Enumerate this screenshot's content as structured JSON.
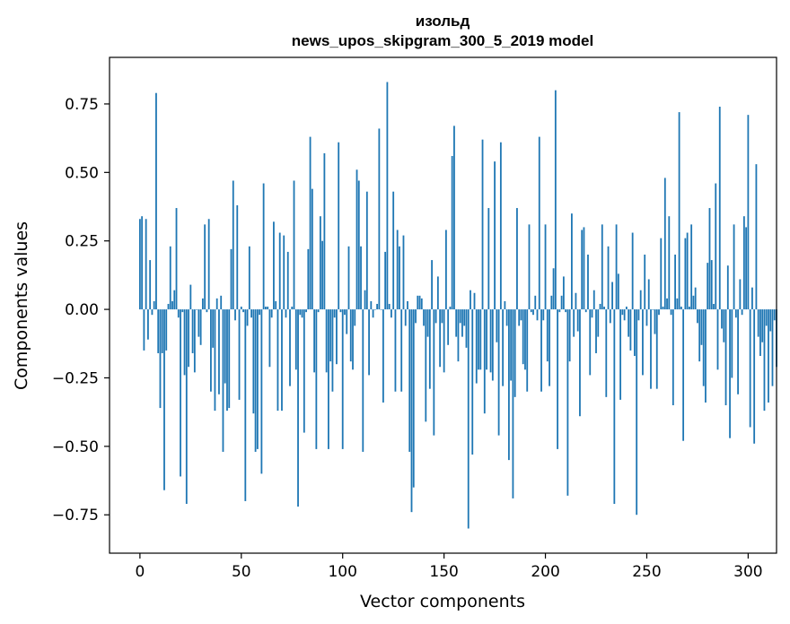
{
  "chart_data": {
    "type": "bar",
    "title": "изольд",
    "subtitle": "news_upos_skipgram_300_5_2019 model",
    "xlabel": "Vector components",
    "ylabel": "Components values",
    "xlim": [
      -15,
      314
    ],
    "ylim": [
      -0.89,
      0.92
    ],
    "xticks": [
      0,
      50,
      100,
      150,
      200,
      250,
      300
    ],
    "xtick_labels": [
      "0",
      "50",
      "100",
      "150",
      "200",
      "250",
      "300"
    ],
    "yticks": [
      0.75,
      0.5,
      0.25,
      0.0,
      -0.25,
      -0.5,
      -0.75
    ],
    "ytick_labels": [
      "0.75",
      "0.50",
      "0.25",
      "0.00",
      "−0.25",
      "−0.50",
      "−0.75"
    ],
    "grid": false,
    "bar_color": "#1f77b4",
    "values": [
      0.33,
      0.34,
      -0.15,
      0.33,
      -0.11,
      0.18,
      -0.02,
      0.03,
      0.79,
      -0.16,
      -0.36,
      -0.16,
      -0.66,
      -0.15,
      0.02,
      0.23,
      0.03,
      0.07,
      0.37,
      -0.03,
      -0.61,
      -0.01,
      -0.24,
      -0.71,
      -0.21,
      0.09,
      -0.16,
      -0.23,
      0.0,
      -0.1,
      -0.13,
      0.04,
      0.31,
      -0.01,
      0.33,
      -0.3,
      -0.14,
      -0.37,
      0.04,
      -0.31,
      0.05,
      -0.52,
      -0.27,
      -0.37,
      -0.36,
      0.22,
      0.47,
      -0.04,
      0.38,
      -0.33,
      0.01,
      -0.01,
      -0.7,
      -0.06,
      0.23,
      -0.03,
      -0.38,
      -0.52,
      -0.51,
      -0.02,
      -0.6,
      0.46,
      0.01,
      0.01,
      -0.21,
      -0.03,
      0.32,
      0.03,
      -0.37,
      0.28,
      -0.37,
      0.27,
      -0.03,
      0.21,
      -0.28,
      0.01,
      0.47,
      -0.22,
      -0.72,
      -0.02,
      -0.03,
      -0.45,
      -0.01,
      0.22,
      0.63,
      0.44,
      -0.23,
      -0.51,
      -0.01,
      0.34,
      0.25,
      0.57,
      -0.23,
      -0.51,
      -0.19,
      -0.3,
      -0.03,
      -0.2,
      0.61,
      -0.01,
      -0.51,
      -0.02,
      -0.09,
      0.23,
      -0.19,
      -0.22,
      -0.06,
      0.51,
      0.47,
      0.23,
      -0.52,
      0.07,
      0.43,
      -0.24,
      0.03,
      -0.03,
      0.0,
      0.02,
      0.66,
      0.0,
      -0.34,
      0.21,
      0.83,
      0.02,
      -0.03,
      0.43,
      -0.3,
      0.29,
      0.23,
      -0.3,
      0.27,
      -0.06,
      0.03,
      -0.52,
      -0.74,
      -0.65,
      -0.05,
      0.05,
      0.05,
      0.04,
      -0.06,
      -0.41,
      -0.1,
      -0.29,
      0.18,
      -0.46,
      -0.05,
      0.12,
      -0.21,
      -0.05,
      -0.23,
      0.29,
      -0.13,
      0.01,
      0.56,
      0.67,
      -0.1,
      -0.19,
      -0.05,
      -0.1,
      -0.06,
      -0.14,
      -0.8,
      0.07,
      -0.53,
      0.06,
      -0.27,
      -0.22,
      -0.22,
      0.62,
      -0.38,
      -0.22,
      0.37,
      -0.23,
      -0.26,
      0.54,
      -0.12,
      -0.46,
      0.61,
      -0.28,
      0.03,
      -0.06,
      -0.55,
      -0.26,
      -0.69,
      -0.32,
      0.37,
      -0.06,
      -0.04,
      -0.2,
      -0.22,
      -0.3,
      0.31,
      -0.01,
      -0.02,
      0.05,
      -0.04,
      0.63,
      -0.3,
      -0.04,
      0.31,
      -0.19,
      -0.28,
      0.05,
      0.15,
      0.8,
      -0.51,
      -0.01,
      0.05,
      0.12,
      -0.01,
      -0.68,
      -0.19,
      0.35,
      -0.1,
      0.06,
      -0.08,
      -0.39,
      0.29,
      0.3,
      -0.01,
      0.2,
      -0.24,
      -0.03,
      0.07,
      -0.16,
      -0.1,
      0.02,
      0.31,
      0.01,
      -0.32,
      0.23,
      -0.05,
      0.1,
      -0.71,
      0.31,
      0.13,
      -0.33,
      -0.02,
      -0.04,
      0.01,
      -0.1,
      -0.15,
      0.28,
      -0.17,
      -0.75,
      -0.04,
      0.07,
      -0.24,
      0.2,
      -0.06,
      0.11,
      -0.29,
      0.0,
      -0.09,
      -0.29,
      -0.02,
      0.26,
      0.01,
      0.48,
      0.04,
      0.34,
      -0.02,
      -0.35,
      0.2,
      0.04,
      0.72,
      0.01,
      -0.48,
      0.26,
      0.28,
      0.01,
      0.31,
      0.05,
      0.08,
      -0.05,
      -0.19,
      -0.13,
      -0.28,
      -0.34,
      0.17,
      0.37,
      0.18,
      0.02,
      0.46,
      -0.22,
      0.74,
      -0.07,
      -0.12,
      -0.35,
      0.16,
      -0.47,
      -0.25,
      0.31,
      -0.03,
      -0.31,
      0.11,
      -0.02,
      0.34,
      0.3,
      0.71,
      -0.43,
      0.08,
      -0.49,
      0.53,
      -0.1,
      -0.17,
      -0.12,
      -0.37,
      -0.06,
      -0.34,
      -0.08,
      -0.28,
      -0.04,
      -0.21
    ]
  }
}
